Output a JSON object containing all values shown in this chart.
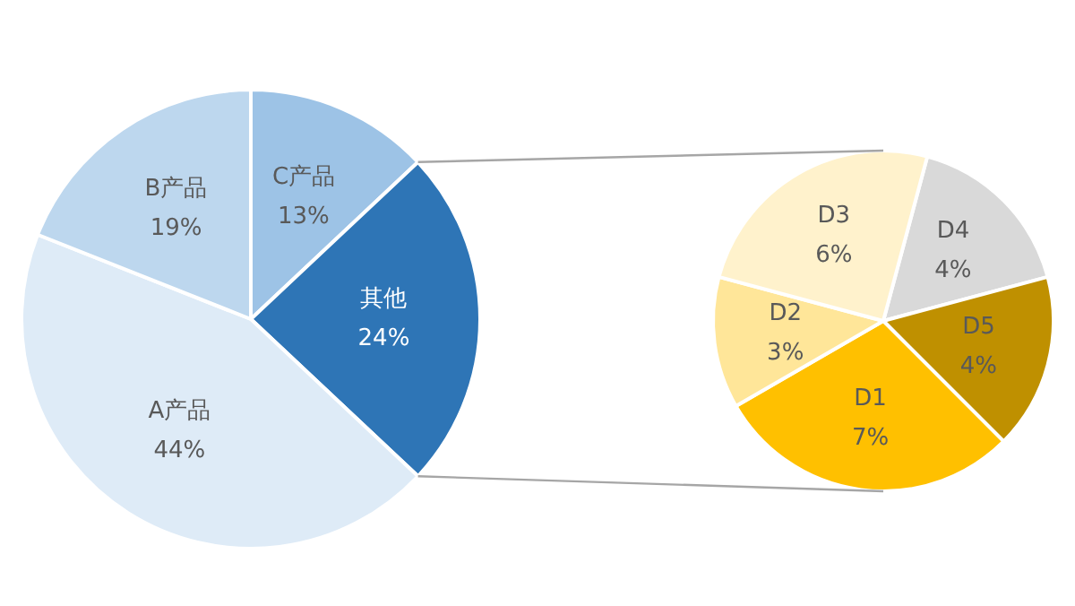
{
  "chart_data": [
    {
      "type": "pie",
      "categories": [
        "C产品",
        "其他",
        "A产品",
        "B产品"
      ],
      "values": [
        13,
        24,
        44,
        19
      ],
      "colors": [
        "#9dc3e6",
        "#2e75b6",
        "#deebf7",
        "#bdd7ee"
      ],
      "value_labels": [
        "13%",
        "24%",
        "44%",
        "19%"
      ]
    },
    {
      "type": "pie",
      "categories": [
        "D4",
        "D5",
        "D1",
        "D2",
        "D3"
      ],
      "values": [
        4,
        4,
        7,
        3,
        6
      ],
      "colors": [
        "#d9d9d9",
        "#bf9000",
        "#ffc000",
        "#ffe699",
        "#fff2cc"
      ],
      "value_labels": [
        "4%",
        "4%",
        "7%",
        "3%",
        "6%"
      ]
    }
  ]
}
